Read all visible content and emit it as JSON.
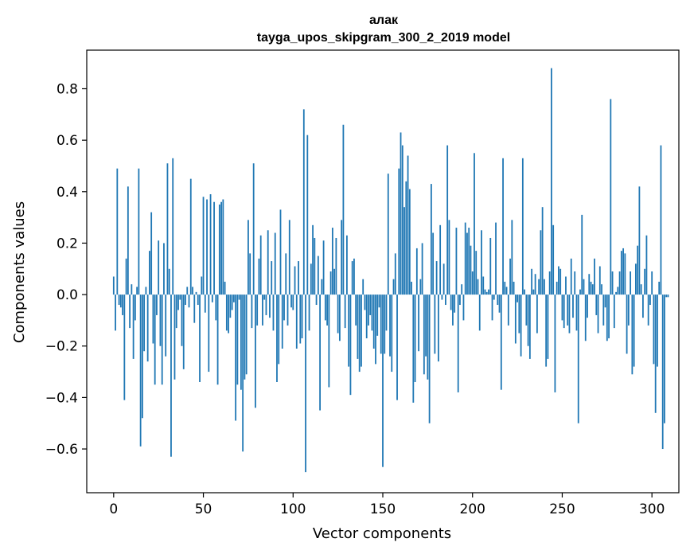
{
  "chart_data": {
    "type": "bar",
    "title_line1": "алак",
    "title_line2": "tayga_upos_skipgram_300_2_2019 model",
    "xlabel": "Vector components",
    "ylabel": "Components values",
    "xlim": [
      -15,
      315
    ],
    "ylim": [
      -0.77,
      0.95
    ],
    "xticks": [
      0,
      50,
      100,
      150,
      200,
      250,
      300
    ],
    "xtick_labels": [
      "0",
      "50",
      "100",
      "150",
      "200",
      "250",
      "300"
    ],
    "yticks": [
      -0.6,
      -0.4,
      -0.2,
      0.0,
      0.2,
      0.4,
      0.6,
      0.8
    ],
    "ytick_labels": [
      "−0.6",
      "−0.4",
      "−0.2",
      "0.0",
      "0.2",
      "0.4",
      "0.6",
      "0.8"
    ],
    "grid": false,
    "bar_color": "#1f77b4",
    "values": [
      0.07,
      -0.14,
      0.49,
      -0.04,
      -0.05,
      -0.08,
      -0.41,
      0.14,
      0.42,
      -0.13,
      0.04,
      -0.25,
      -0.1,
      0.03,
      0.49,
      -0.59,
      -0.48,
      -0.22,
      0.03,
      -0.26,
      0.17,
      0.32,
      -0.19,
      -0.35,
      -0.08,
      0.21,
      -0.2,
      -0.35,
      0.2,
      -0.24,
      0.51,
      0.1,
      -0.63,
      0.53,
      -0.33,
      -0.13,
      -0.06,
      -0.02,
      -0.2,
      -0.29,
      -0.04,
      0.03,
      -0.05,
      0.45,
      0.03,
      -0.11,
      0.01,
      -0.04,
      -0.34,
      0.07,
      0.38,
      -0.07,
      0.37,
      -0.3,
      0.39,
      -0.03,
      0.36,
      -0.1,
      -0.35,
      0.35,
      0.36,
      0.37,
      0.05,
      -0.14,
      -0.15,
      -0.09,
      -0.06,
      -0.03,
      -0.49,
      -0.35,
      -0.02,
      -0.37,
      -0.61,
      -0.33,
      -0.31,
      0.29,
      0.16,
      -0.13,
      0.51,
      -0.44,
      -0.12,
      0.14,
      0.23,
      -0.12,
      -0.02,
      -0.08,
      0.25,
      -0.09,
      0.13,
      -0.14,
      0.24,
      -0.34,
      -0.27,
      0.33,
      -0.21,
      -0.1,
      0.16,
      -0.12,
      0.29,
      -0.05,
      -0.06,
      0.11,
      -0.21,
      0.13,
      -0.19,
      -0.17,
      0.72,
      -0.69,
      0.62,
      -0.14,
      0.12,
      0.27,
      0.22,
      -0.04,
      0.15,
      -0.45,
      0.06,
      0.21,
      -0.1,
      -0.12,
      -0.36,
      0.09,
      0.26,
      0.1,
      0.22,
      -0.15,
      -0.18,
      0.29,
      0.66,
      -0.13,
      0.23,
      -0.28,
      -0.39,
      0.13,
      0.14,
      -0.12,
      -0.25,
      -0.3,
      -0.28,
      0.06,
      -0.06,
      -0.17,
      -0.12,
      -0.08,
      -0.14,
      -0.21,
      -0.27,
      -0.16,
      -0.05,
      -0.23,
      -0.67,
      -0.23,
      -0.14,
      0.47,
      -0.24,
      -0.3,
      0.06,
      0.16,
      -0.41,
      0.49,
      0.63,
      0.58,
      0.34,
      0.44,
      0.54,
      0.41,
      0.05,
      -0.42,
      -0.34,
      0.18,
      -0.22,
      0.06,
      0.2,
      -0.31,
      -0.24,
      -0.33,
      -0.5,
      0.43,
      0.24,
      -0.23,
      0.13,
      -0.26,
      0.27,
      -0.02,
      0.12,
      -0.04,
      0.58,
      0.29,
      -0.06,
      -0.12,
      -0.07,
      0.26,
      -0.38,
      -0.04,
      0.04,
      -0.1,
      0.28,
      0.24,
      0.26,
      0.19,
      0.09,
      0.55,
      0.17,
      0.06,
      -0.14,
      0.25,
      0.07,
      0.02,
      0.01,
      0.02,
      0.22,
      -0.1,
      -0.02,
      0.28,
      -0.04,
      -0.07,
      -0.37,
      0.53,
      0.05,
      0.03,
      -0.12,
      0.14,
      0.29,
      0.05,
      -0.19,
      -0.03,
      -0.15,
      -0.24,
      0.53,
      0.02,
      -0.12,
      -0.2,
      -0.25,
      0.1,
      0.02,
      0.08,
      -0.15,
      0.06,
      0.25,
      0.34,
      0.06,
      -0.28,
      -0.25,
      0.09,
      0.88,
      0.27,
      -0.38,
      0.05,
      0.11,
      0.1,
      -0.1,
      -0.13,
      0.07,
      -0.12,
      -0.15,
      0.14,
      -0.09,
      0.09,
      -0.14,
      -0.5,
      0.02,
      0.31,
      0.06,
      -0.18,
      -0.09,
      0.08,
      0.05,
      0.04,
      0.14,
      -0.08,
      -0.15,
      0.11,
      0.04,
      -0.12,
      -0.05,
      -0.18,
      -0.17,
      0.76,
      0.09,
      -0.13,
      0.01,
      0.03,
      0.09,
      0.17,
      0.18,
      0.16,
      -0.23,
      -0.12,
      0.09,
      -0.31,
      -0.28,
      0.12,
      0.19,
      0.42,
      0.04,
      -0.09,
      0.1,
      0.23,
      -0.12,
      -0.04,
      0.09,
      -0.27,
      -0.46,
      -0.28,
      0.05,
      0.58,
      -0.6,
      -0.5,
      -0.01,
      -0.01
    ]
  }
}
